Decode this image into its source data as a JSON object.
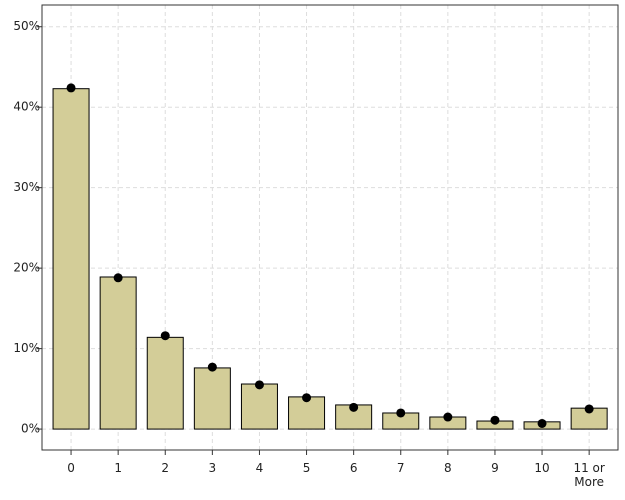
{
  "chart_data": {
    "type": "bar",
    "categories": [
      "0",
      "1",
      "2",
      "3",
      "4",
      "5",
      "6",
      "7",
      "8",
      "9",
      "10",
      "11 or More"
    ],
    "series": [
      {
        "type": "bar",
        "color": "#d3cd98",
        "values": [
          42.3,
          18.9,
          11.4,
          7.6,
          5.6,
          4.0,
          3.0,
          2.0,
          1.5,
          1.0,
          0.9,
          2.6
        ]
      },
      {
        "type": "scatter",
        "color": "#000000",
        "values": [
          42.4,
          18.8,
          11.6,
          7.7,
          5.5,
          3.9,
          2.7,
          2.0,
          1.5,
          1.1,
          0.7,
          2.5
        ]
      }
    ],
    "ylim": [
      -2.6,
      52.7
    ],
    "yticks": [
      {
        "value": 0,
        "label": "0%"
      },
      {
        "value": 10,
        "label": "10%"
      },
      {
        "value": 20,
        "label": "20%"
      },
      {
        "value": 30,
        "label": "30%"
      },
      {
        "value": 40,
        "label": "40%"
      },
      {
        "value": 50,
        "label": "50%"
      }
    ],
    "grid": true
  }
}
